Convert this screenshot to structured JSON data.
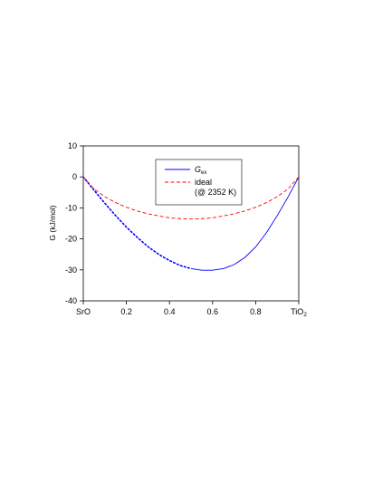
{
  "chart_data": {
    "type": "line",
    "ylabel": "G (kJ/mol)",
    "xlabel": "",
    "xlim": [
      0,
      1
    ],
    "ylim": [
      -40,
      10
    ],
    "x_ticks": [
      {
        "value": 0,
        "label": "SrO"
      },
      {
        "value": 0.2,
        "label": "0.2"
      },
      {
        "value": 0.4,
        "label": "0.4"
      },
      {
        "value": 0.6,
        "label": "0.6"
      },
      {
        "value": 0.8,
        "label": "0.8"
      },
      {
        "value": 1.0,
        "label": "TiO2",
        "label_main": "TiO",
        "label_sub": "2"
      }
    ],
    "y_ticks": [
      {
        "value": 10,
        "label": "10"
      },
      {
        "value": 0,
        "label": "0"
      },
      {
        "value": -10,
        "label": "-10"
      },
      {
        "value": -20,
        "label": "-20"
      },
      {
        "value": -30,
        "label": "-30"
      },
      {
        "value": -40,
        "label": "-40"
      }
    ],
    "grid": false,
    "legend_position": "top-center",
    "series": [
      {
        "name": "Gex",
        "legend_main": "G",
        "legend_sub": "ex",
        "color": "#0000ff",
        "style": "dotted-then-solid",
        "solid_from_x": 0.5,
        "x": [
          0,
          0.05,
          0.1,
          0.15,
          0.2,
          0.25,
          0.3,
          0.35,
          0.4,
          0.45,
          0.5,
          0.55,
          0.6,
          0.65,
          0.7,
          0.75,
          0.8,
          0.85,
          0.9,
          0.95,
          1.0
        ],
        "y": [
          0,
          -4.3,
          -8.5,
          -12.5,
          -16.2,
          -19.5,
          -22.5,
          -25.0,
          -27.0,
          -28.6,
          -29.6,
          -30.1,
          -30.1,
          -29.6,
          -28.3,
          -26.0,
          -22.6,
          -18.0,
          -12.5,
          -6.5,
          0
        ]
      },
      {
        "name": "ideal",
        "legend_lines": [
          "ideal",
          "(@ 2352 K)"
        ],
        "color": "#ff0000",
        "style": "dashed",
        "x": [
          0,
          0.05,
          0.1,
          0.15,
          0.2,
          0.25,
          0.3,
          0.35,
          0.4,
          0.45,
          0.5,
          0.55,
          0.6,
          0.65,
          0.7,
          0.75,
          0.8,
          0.85,
          0.9,
          0.95,
          1.0
        ],
        "y": [
          0,
          -3.9,
          -6.4,
          -8.3,
          -9.8,
          -11.0,
          -11.9,
          -12.6,
          -13.2,
          -13.5,
          -13.6,
          -13.5,
          -13.2,
          -12.6,
          -11.9,
          -11.0,
          -9.8,
          -8.3,
          -6.4,
          -3.9,
          0
        ]
      }
    ]
  }
}
